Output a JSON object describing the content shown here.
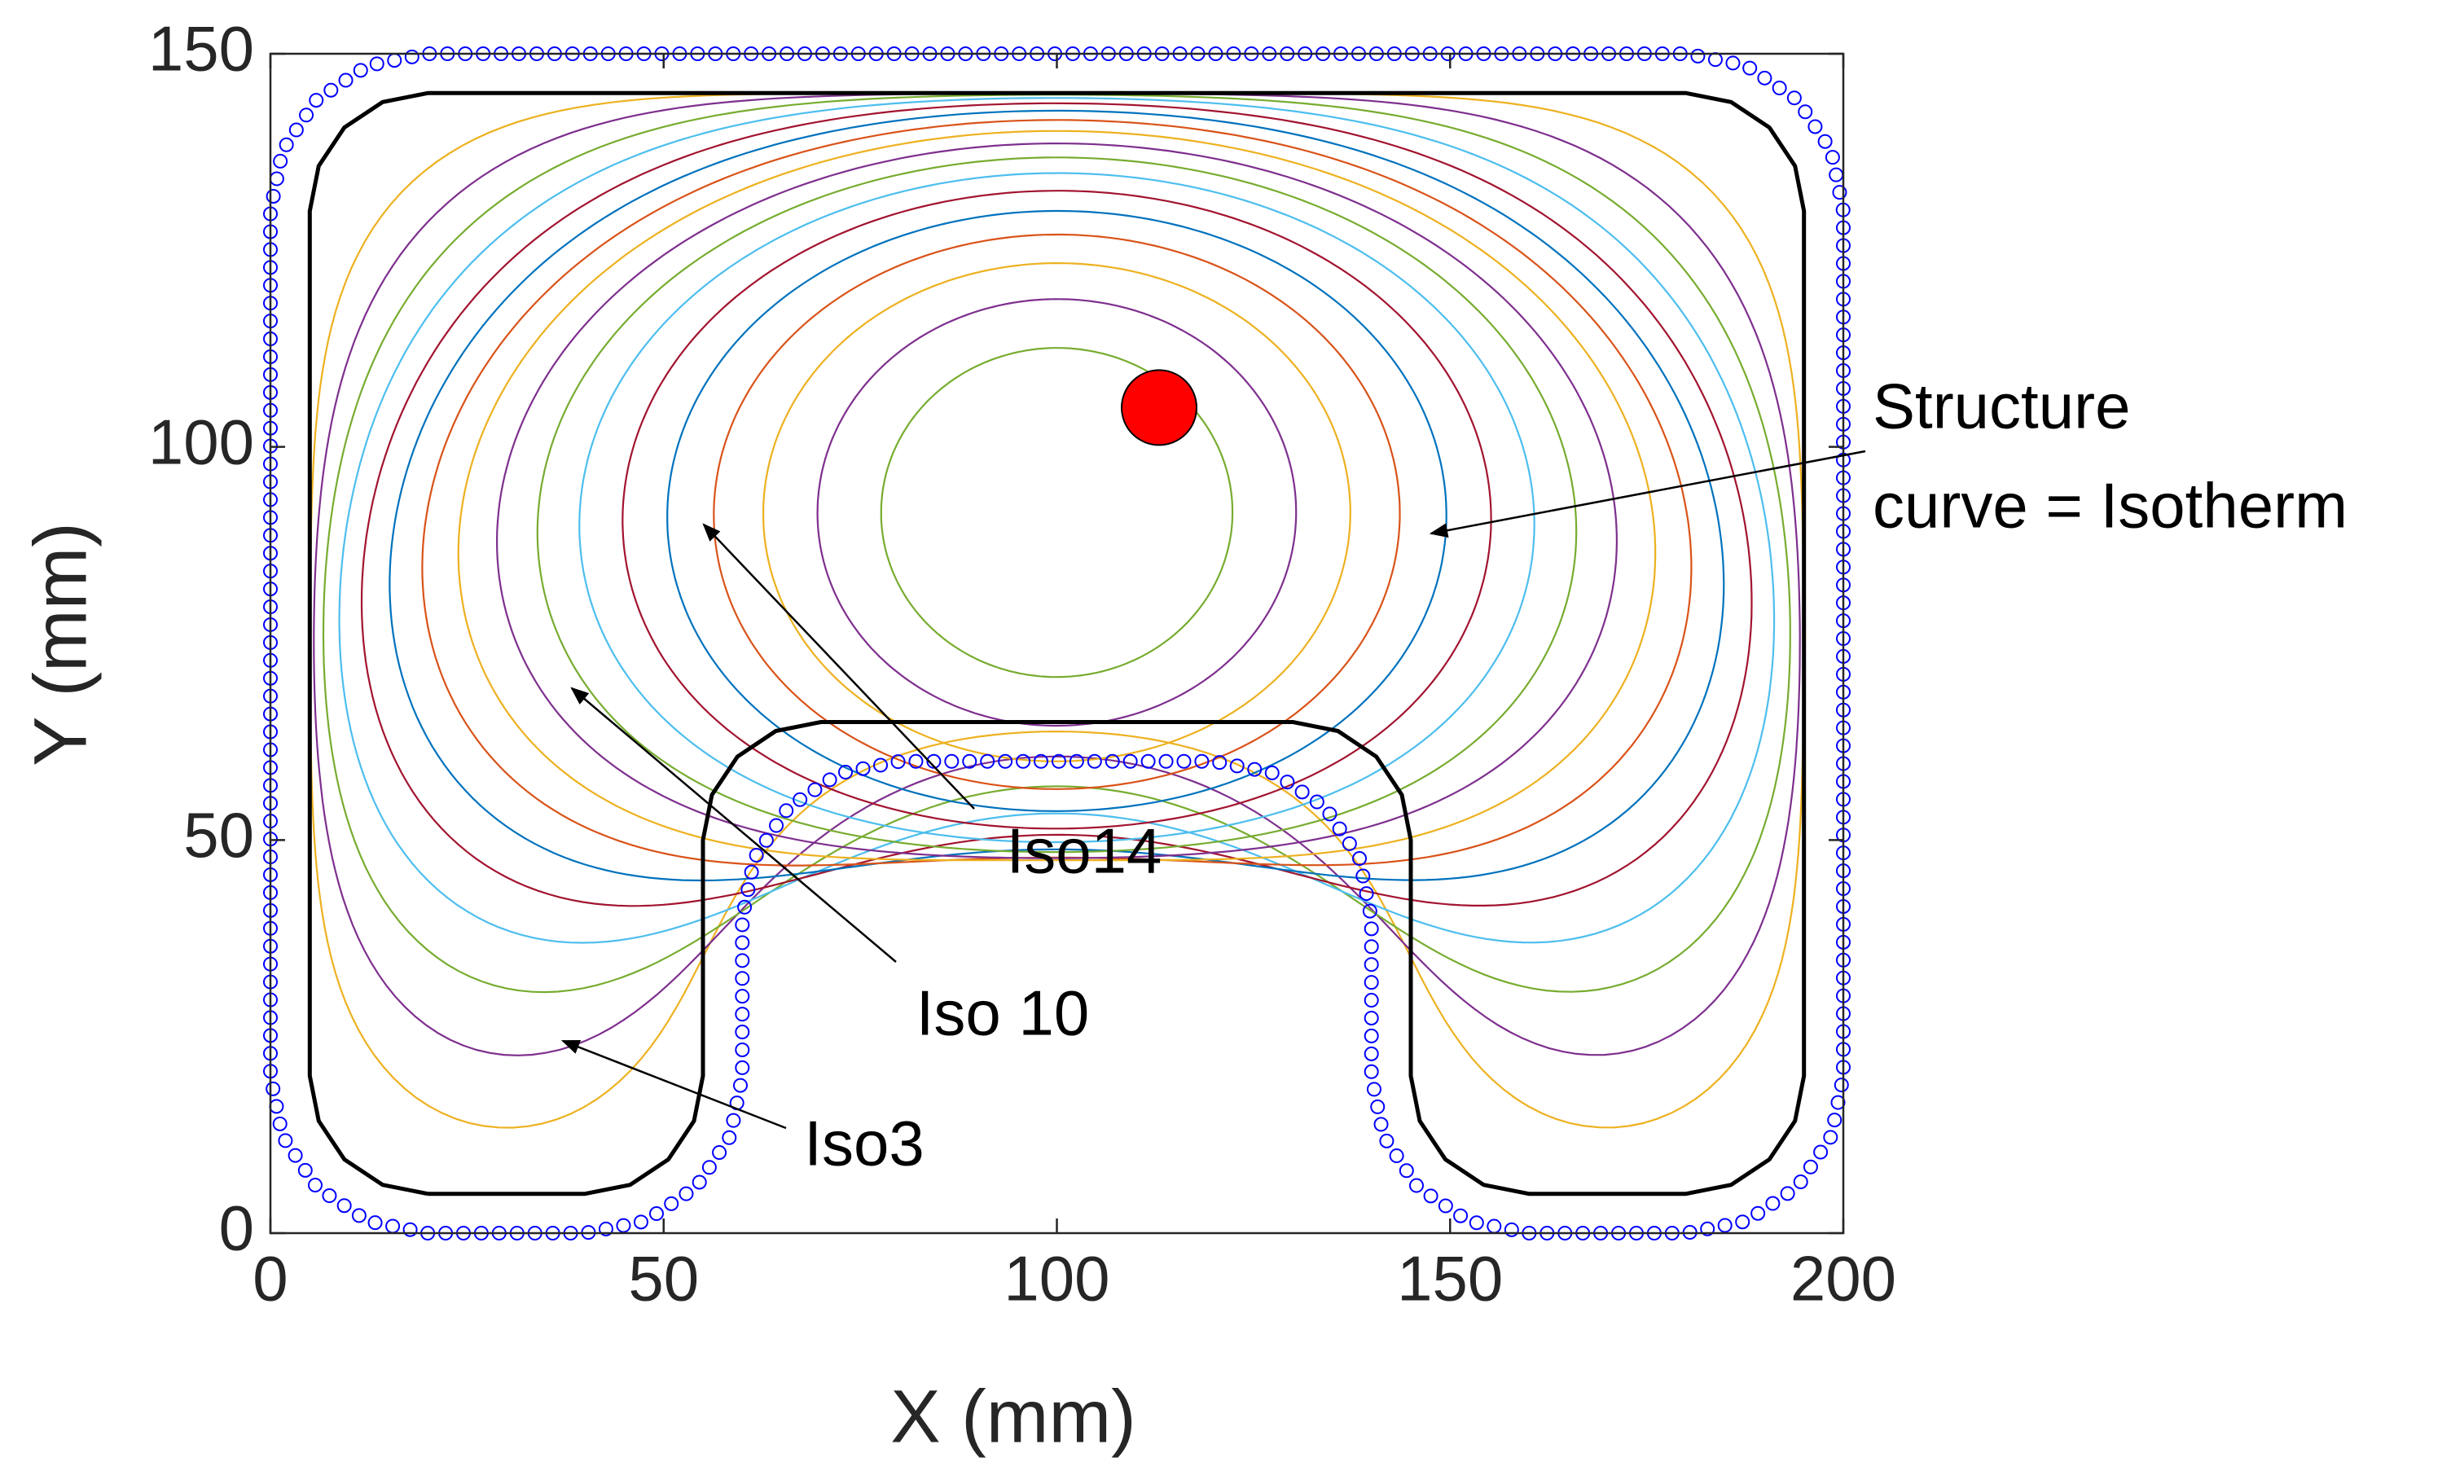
{
  "chart_data": {
    "type": "line",
    "x_label": "X (mm)",
    "y_label": "Y (mm)",
    "xlim": [
      0,
      200
    ],
    "ylim": [
      0,
      150
    ],
    "xticks": [
      0,
      50,
      100,
      150,
      200
    ],
    "yticks": [
      0,
      50,
      100,
      150
    ],
    "grid": false,
    "contour_colors": [
      "#EDB120",
      "#7E2F8E",
      "#77AC30",
      "#4DBEEE",
      "#A2142F",
      "#0072BD",
      "#D95319"
    ],
    "series": [
      {
        "color": "#000000",
        "mode": "line",
        "x": [
          20,
          40,
          45.74,
          50.61,
          53.86,
          55,
          55,
          56.14,
          59.39,
          64.26,
          70,
          130,
          135.74,
          140.61,
          143.86,
          145,
          145,
          146.14,
          149.39,
          154.26,
          160,
          180,
          185.74,
          190.61,
          193.86,
          195,
          195,
          193.86,
          190.61,
          185.74,
          180,
          20,
          14.26,
          9.39,
          6.14,
          5,
          5,
          6.14,
          9.39,
          14.26,
          20
        ],
        "values": [
          5,
          5,
          6.14,
          9.39,
          14.26,
          20,
          50,
          55.74,
          60.61,
          63.86,
          65,
          65,
          63.86,
          60.61,
          55.74,
          50,
          20,
          14.26,
          9.39,
          6.14,
          5,
          5,
          6.14,
          9.39,
          14.26,
          20,
          130,
          135.74,
          140.61,
          143.86,
          145,
          145,
          143.86,
          140.61,
          135.74,
          130,
          20,
          14.26,
          9.39,
          6.14,
          5
        ]
      },
      {
        "color": "#0000FF",
        "mode": "markers",
        "x": [
          20,
          40,
          47.65,
          54.14,
          58.48,
          60,
          60,
          61.52,
          65.86,
          72.35,
          80,
          120,
          127.65,
          134.14,
          138.48,
          140,
          140,
          141.52,
          145.86,
          152.35,
          160,
          180,
          187.65,
          194.14,
          198.48,
          200,
          200,
          198.48,
          194.14,
          187.65,
          180,
          20,
          12.35,
          5.86,
          1.52,
          0,
          0,
          1.52,
          5.86,
          12.35,
          20
        ],
        "values": [
          0,
          0,
          1.52,
          5.86,
          12.35,
          20,
          40,
          47.65,
          54.14,
          58.48,
          60,
          60,
          58.48,
          54.14,
          47.65,
          40,
          20,
          12.35,
          5.86,
          1.52,
          0,
          0,
          1.52,
          5.86,
          12.35,
          20,
          130,
          137.65,
          144.14,
          148.48,
          150,
          150,
          148.48,
          144.14,
          137.65,
          130,
          20,
          12.35,
          5.86,
          1.52,
          0
        ]
      },
      {
        "color": "#FF0000",
        "mode": "point",
        "x": [
          113
        ],
        "values": [
          105
        ]
      }
    ],
    "annotations": {
      "iso14": "Iso14",
      "iso10": "Iso 10",
      "iso3": "Iso3",
      "structure_1": "Structure",
      "structure_2": "curve = Isotherm"
    }
  }
}
